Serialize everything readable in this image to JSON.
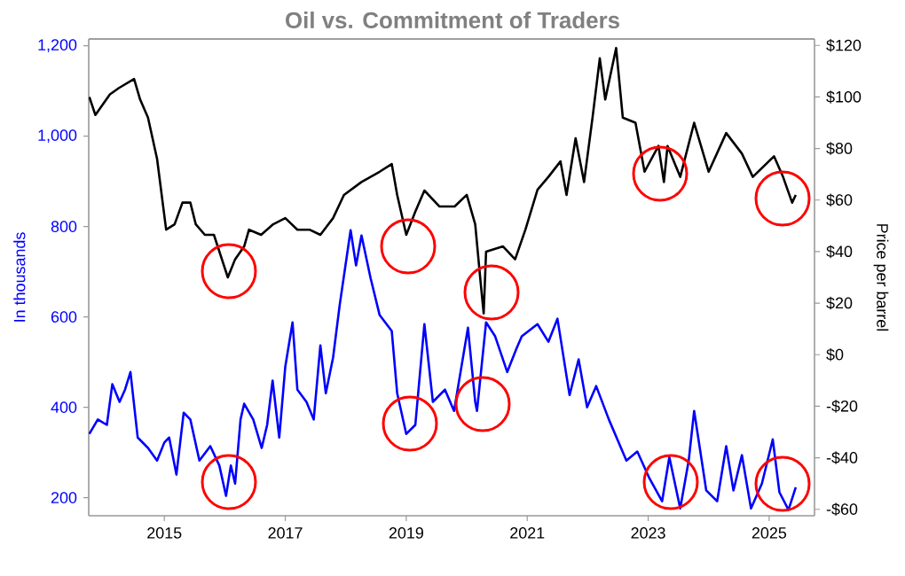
{
  "chart_data": {
    "type": "line",
    "title": "Oil vs. Commitment of Traders",
    "ylabel": "In thousands",
    "y2label": "Price per barrel",
    "xlim": [
      2013.75,
      2025.75
    ],
    "xticks": [
      2015,
      2017,
      2019,
      2021,
      2023,
      2025
    ],
    "ylim": [
      160,
      1215
    ],
    "yticks": [
      200,
      400,
      600,
      800,
      {
        "value": 1000,
        "label": "1,000"
      },
      {
        "value": 1200,
        "label": "1,200"
      }
    ],
    "y2lim": [
      -62.5,
      122.5
    ],
    "y2ticks": [
      {
        "value": -60,
        "label": "-$60"
      },
      {
        "value": -40,
        "label": "-$40"
      },
      {
        "value": -20,
        "label": "-$20"
      },
      {
        "value": 0,
        "label": "$0"
      },
      {
        "value": 20,
        "label": "$20"
      },
      {
        "value": 40,
        "label": "$40"
      },
      {
        "value": 60,
        "label": "$60"
      },
      {
        "value": 80,
        "label": "$80"
      },
      {
        "value": 100,
        "label": "$100"
      },
      {
        "value": 120,
        "label": "$120"
      }
    ],
    "series": [
      {
        "color": "#0000ff",
        "axis": "y",
        "x": [
          2013.76,
          2013.9,
          2014.05,
          2014.14,
          2014.26,
          2014.35,
          2014.44,
          2014.56,
          2014.73,
          2014.88,
          2015.0,
          2015.08,
          2015.2,
          2015.32,
          2015.43,
          2015.58,
          2015.76,
          2015.91,
          2016.02,
          2016.1,
          2016.17,
          2016.26,
          2016.32,
          2016.47,
          2016.61,
          2016.7,
          2016.79,
          2016.9,
          2017.0,
          2017.12,
          2017.2,
          2017.35,
          2017.47,
          2017.58,
          2017.67,
          2017.79,
          2017.9,
          2018.08,
          2018.17,
          2018.26,
          2018.41,
          2018.56,
          2018.76,
          2018.85,
          2019.0,
          2019.15,
          2019.3,
          2019.44,
          2019.64,
          2019.79,
          2020.02,
          2020.14,
          2020.17,
          2020.32,
          2020.47,
          2020.67,
          2020.82,
          2020.91,
          2021.17,
          2021.35,
          2021.5,
          2021.7,
          2021.85,
          2021.99,
          2022.14,
          2022.35,
          2022.64,
          2022.82,
          2023.02,
          2023.23,
          2023.35,
          2023.53,
          2023.67,
          2023.76,
          2023.96,
          2024.14,
          2024.29,
          2024.41,
          2024.55,
          2024.7,
          2024.88,
          2025.06,
          2025.17,
          2025.32,
          2025.44
        ],
        "values": [
          341,
          373,
          361,
          451,
          412,
          439,
          478,
          333,
          310,
          282,
          322,
          333,
          251,
          388,
          373,
          282,
          314,
          271,
          204,
          271,
          231,
          373,
          408,
          373,
          310,
          361,
          459,
          333,
          490,
          588,
          439,
          412,
          373,
          537,
          431,
          510,
          627,
          792,
          714,
          780,
          686,
          604,
          569,
          431,
          341,
          361,
          584,
          412,
          439,
          392,
          576,
          412,
          392,
          588,
          557,
          478,
          529,
          557,
          584,
          545,
          596,
          427,
          506,
          400,
          447,
          373,
          282,
          302,
          243,
          192,
          290,
          176,
          282,
          392,
          216,
          192,
          314,
          216,
          294,
          176,
          231,
          329,
          212,
          173,
          223
        ]
      },
      {
        "color": "#000000",
        "axis": "y2",
        "x": [
          2013.76,
          2013.86,
          2014.1,
          2014.25,
          2014.5,
          2014.6,
          2014.73,
          2014.88,
          2015.03,
          2015.17,
          2015.3,
          2015.43,
          2015.52,
          2015.67,
          2015.82,
          2016.05,
          2016.17,
          2016.32,
          2016.4,
          2016.6,
          2016.8,
          2017.0,
          2017.2,
          2017.4,
          2017.58,
          2017.79,
          2017.97,
          2018.26,
          2018.56,
          2018.76,
          2018.85,
          2019.0,
          2019.15,
          2019.3,
          2019.55,
          2019.8,
          2020.0,
          2020.14,
          2020.23,
          2020.28,
          2020.32,
          2020.6,
          2020.8,
          2020.97,
          2021.17,
          2021.35,
          2021.55,
          2021.65,
          2021.8,
          2021.94,
          2022.08,
          2022.2,
          2022.29,
          2022.47,
          2022.58,
          2022.79,
          2022.94,
          2023.17,
          2023.26,
          2023.32,
          2023.53,
          2023.76,
          2024.0,
          2024.29,
          2024.55,
          2024.73,
          2025.08,
          2025.23,
          2025.38,
          2025.44
        ],
        "values": [
          100,
          93,
          101,
          103.5,
          107,
          99,
          92,
          76,
          48.5,
          50.6,
          59,
          59,
          50.6,
          46.5,
          46.5,
          30,
          37,
          42,
          48.5,
          46.5,
          50.6,
          53,
          48.5,
          48.5,
          46.5,
          53,
          62,
          67,
          71,
          74,
          62,
          46.5,
          55.5,
          63.7,
          57.5,
          57.5,
          62,
          50.6,
          28,
          16,
          40,
          42,
          37,
          48.5,
          64,
          69,
          75,
          62,
          84,
          67,
          92,
          115,
          99,
          119,
          92,
          90,
          71,
          81,
          67,
          81,
          69,
          90,
          71,
          86,
          78,
          69,
          77,
          69,
          59,
          62
        ]
      }
    ]
  }
}
